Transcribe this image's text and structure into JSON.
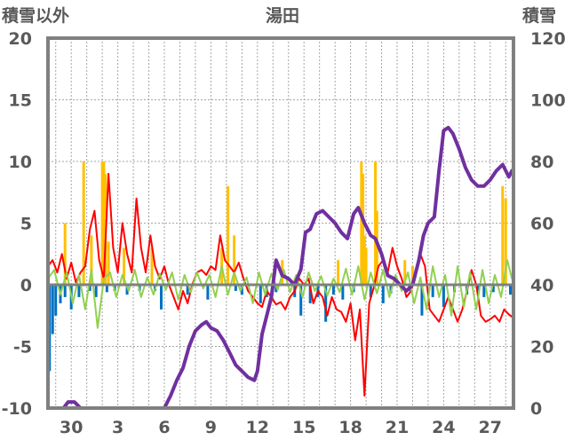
{
  "chart_data": {
    "type": "line",
    "title": "湯田",
    "ylabel_left": "積雪以外",
    "ylabel_right": "積雪",
    "ylim_left": [
      -10,
      20
    ],
    "ylim_right": [
      0,
      120
    ],
    "yticks_left": [
      20,
      15,
      10,
      5,
      0,
      -5,
      -10
    ],
    "yticks_right": [
      120,
      100,
      80,
      60,
      40,
      20,
      0
    ],
    "xlim": [
      28.5,
      58.5
    ],
    "xticks": [
      {
        "x": 30,
        "label": "30"
      },
      {
        "x": 33,
        "label": "3"
      },
      {
        "x": 36,
        "label": "6"
      },
      {
        "x": 39,
        "label": "9"
      },
      {
        "x": 42,
        "label": "12"
      },
      {
        "x": 45,
        "label": "15"
      },
      {
        "x": 48,
        "label": "18"
      },
      {
        "x": 51,
        "label": "21"
      },
      {
        "x": 54,
        "label": "24"
      },
      {
        "x": 57,
        "label": "27"
      }
    ],
    "grid": true,
    "colors": {
      "snow_depth": "#7030a0",
      "temperature": "#ff0000",
      "precipitation": "#ffc000",
      "snowfall": "#0070c0",
      "temp_change": "#92d050",
      "frame": "#808080"
    },
    "series": [
      {
        "key": "snow_depth",
        "axis": "right",
        "x": [
          28.5,
          29.5,
          29.8,
          30.2,
          30.6,
          31.5,
          33.0,
          34.5,
          36.0,
          36.4,
          36.8,
          37.2,
          37.6,
          38.0,
          38.4,
          38.7,
          39.0,
          39.4,
          39.8,
          40.2,
          40.6,
          41.0,
          41.4,
          41.8,
          42.0,
          42.3,
          42.6,
          42.9,
          43.2,
          43.6,
          44.0,
          44.4,
          44.8,
          45.1,
          45.4,
          45.8,
          46.2,
          46.6,
          47.0,
          47.4,
          47.8,
          48.2,
          48.5,
          48.9,
          49.3,
          49.6,
          50.0,
          50.4,
          50.8,
          51.2,
          51.6,
          52.0,
          52.4,
          52.7,
          53.0,
          53.4,
          53.7,
          54.0,
          54.3,
          54.6,
          55.0,
          55.4,
          55.8,
          56.2,
          56.6,
          57.0,
          57.4,
          57.8,
          58.2,
          58.4
        ],
        "values": [
          0,
          0,
          2,
          2,
          0,
          0,
          0,
          0,
          0,
          4,
          9,
          13,
          20,
          25,
          27,
          28,
          26,
          25,
          22,
          18,
          14,
          12,
          10,
          9,
          12,
          24,
          30,
          36,
          48,
          43,
          42,
          40,
          45,
          57,
          58,
          63,
          64,
          62,
          60,
          57,
          55,
          63,
          65,
          60,
          56,
          55,
          50,
          43,
          42,
          40,
          38,
          40,
          48,
          56,
          60,
          62,
          77,
          90,
          91,
          89,
          84,
          78,
          74,
          72,
          72,
          74,
          77,
          79,
          75,
          77
        ]
      },
      {
        "key": "temperature",
        "axis": "left",
        "x": [
          28.5,
          28.8,
          29.1,
          29.4,
          29.7,
          30.0,
          30.3,
          30.6,
          30.9,
          31.2,
          31.5,
          31.8,
          32.1,
          32.4,
          32.7,
          33.0,
          33.3,
          33.6,
          33.9,
          34.2,
          34.5,
          34.8,
          35.1,
          35.4,
          35.7,
          36.0,
          36.3,
          36.6,
          36.9,
          37.2,
          37.5,
          37.8,
          38.1,
          38.4,
          38.7,
          39.0,
          39.3,
          39.6,
          39.9,
          40.2,
          40.5,
          40.8,
          41.1,
          41.4,
          41.7,
          42.0,
          42.3,
          42.6,
          42.9,
          43.2,
          43.5,
          43.8,
          44.1,
          44.4,
          44.7,
          45.0,
          45.3,
          45.6,
          45.9,
          46.2,
          46.5,
          46.8,
          47.1,
          47.4,
          47.7,
          48.0,
          48.3,
          48.6,
          48.9,
          49.2,
          49.5,
          49.8,
          50.1,
          50.4,
          50.7,
          51.0,
          51.3,
          51.6,
          51.9,
          52.2,
          52.5,
          52.8,
          53.1,
          53.4,
          53.7,
          54.0,
          54.3,
          54.6,
          54.9,
          55.2,
          55.5,
          55.8,
          56.1,
          56.4,
          56.7,
          57.0,
          57.3,
          57.6,
          57.9,
          58.2,
          58.4
        ],
        "values": [
          1.5,
          2.0,
          1.0,
          2.5,
          0.5,
          1.8,
          0.2,
          1.0,
          1.5,
          4.5,
          6.0,
          2.0,
          0.5,
          9.0,
          3.0,
          1.0,
          5.0,
          2.5,
          1.0,
          7.0,
          3.0,
          1.0,
          4.0,
          1.5,
          0.5,
          1.5,
          0.0,
          -1.0,
          -2.0,
          -0.5,
          -1.5,
          0.0,
          1.0,
          1.2,
          0.8,
          1.5,
          1.2,
          4.0,
          2.0,
          1.5,
          1.0,
          1.8,
          0.5,
          -0.5,
          -1.0,
          -1.5,
          -1.8,
          -0.5,
          -1.0,
          -1.6,
          -1.4,
          -2.0,
          -1.0,
          -0.5,
          0.5,
          0.0,
          0.5,
          -1.5,
          -0.5,
          -1.0,
          -2.5,
          -1.0,
          -2.0,
          -2.2,
          -3.0,
          -1.5,
          -4.5,
          -2.0,
          -9.0,
          -1.5,
          -0.2,
          1.5,
          2.0,
          1.0,
          3.0,
          1.5,
          0.5,
          -1.0,
          -0.5,
          1.0,
          2.5,
          1.5,
          -2.0,
          -2.5,
          -3.0,
          -2.0,
          -1.0,
          -2.0,
          -3.0,
          -2.0,
          -0.5,
          1.2,
          0.0,
          -2.5,
          -3.0,
          -2.8,
          -2.5,
          -3.0,
          -2.0,
          -2.4,
          -2.6
        ]
      },
      {
        "key": "temp_change",
        "axis": "left",
        "x": [
          28.5,
          28.9,
          29.3,
          29.7,
          30.1,
          30.5,
          30.9,
          31.3,
          31.7,
          32.1,
          32.5,
          32.9,
          33.3,
          33.7,
          34.1,
          34.5,
          34.9,
          35.3,
          35.7,
          36.1,
          36.5,
          36.9,
          37.3,
          37.7,
          38.1,
          38.5,
          38.9,
          39.3,
          39.7,
          40.1,
          40.5,
          40.9,
          41.3,
          41.7,
          42.1,
          42.5,
          42.9,
          43.3,
          43.7,
          44.1,
          44.5,
          44.9,
          45.3,
          45.7,
          46.1,
          46.5,
          46.9,
          47.3,
          47.7,
          48.1,
          48.5,
          48.9,
          49.3,
          49.7,
          50.1,
          50.5,
          50.9,
          51.3,
          51.7,
          52.1,
          52.5,
          52.9,
          53.3,
          53.7,
          54.1,
          54.5,
          54.9,
          55.3,
          55.7,
          56.1,
          56.5,
          56.9,
          57.3,
          57.7,
          58.1,
          58.4
        ],
        "values": [
          0.5,
          1.2,
          -0.8,
          1.0,
          -1.5,
          0.8,
          -2.0,
          1.2,
          -3.5,
          0.5,
          1.0,
          -1.0,
          0.8,
          -0.5,
          1.2,
          -1.0,
          0.6,
          -0.8,
          0.9,
          -0.4,
          1.0,
          -1.2,
          0.8,
          -0.6,
          1.0,
          -0.3,
          0.8,
          -1.0,
          1.5,
          -0.8,
          1.0,
          -0.5,
          0.6,
          -1.5,
          1.0,
          -0.8,
          0.9,
          -0.4,
          1.2,
          -0.6,
          0.8,
          -1.0,
          1.0,
          -0.5,
          0.7,
          -0.9,
          0.5,
          -0.6,
          1.3,
          -0.8,
          1.5,
          -1.2,
          1.0,
          -0.7,
          1.2,
          -1.0,
          0.8,
          -0.5,
          1.0,
          -1.5,
          0.6,
          -2.0,
          1.5,
          -1.0,
          0.8,
          -2.5,
          1.5,
          -1.8,
          1.0,
          -2.0,
          1.2,
          -1.5,
          0.8,
          -1.0,
          2.0,
          0.5
        ]
      }
    ],
    "bars": [
      {
        "key": "precipitation",
        "axis": "left",
        "x": [
          29.6,
          30.8,
          31.3,
          32.0,
          32.1,
          32.2,
          32.4,
          33.4,
          35.2,
          39.7,
          40.1,
          40.5,
          43.6,
          47.2,
          48.7,
          48.8,
          48.9,
          49.0,
          49.6,
          49.7,
          51.5,
          52.0,
          57.8,
          58.0
        ],
        "values": [
          5.0,
          10.0,
          4.0,
          10.0,
          10.0,
          9.0,
          3.5,
          3.0,
          3.0,
          3.0,
          8.0,
          4.0,
          2.0,
          2.0,
          10.0,
          9.0,
          4.0,
          3.0,
          10.0,
          6.0,
          2.0,
          1.5,
          8.0,
          7.0
        ]
      },
      {
        "key": "snowfall",
        "axis": "left",
        "x": [
          28.6,
          28.8,
          29.0,
          29.3,
          29.6,
          30.0,
          30.5,
          31.2,
          31.6,
          32.3,
          32.8,
          33.6,
          34.4,
          35.4,
          35.8,
          37.5,
          38.8,
          40.6,
          41.0,
          42.2,
          42.6,
          43.2,
          44.4,
          44.8,
          45.4,
          45.9,
          46.4,
          46.9,
          47.5,
          48.2,
          49.3,
          50.1,
          50.6,
          51.8,
          52.6,
          53.3,
          54.0,
          54.7,
          55.5,
          56.2,
          56.6,
          57.2,
          58.3
        ],
        "values": [
          -7.0,
          -4.0,
          -2.5,
          -1.5,
          -1.0,
          -2.0,
          -1.0,
          -0.5,
          -1.0,
          -0.6,
          -0.5,
          -0.8,
          -0.5,
          -0.5,
          -2.0,
          -0.8,
          -1.2,
          -0.5,
          -0.8,
          -1.5,
          -1.0,
          -0.6,
          -1.0,
          -2.5,
          -1.5,
          -1.0,
          -3.0,
          -0.8,
          -1.2,
          -0.6,
          -1.0,
          -1.5,
          -0.7,
          -0.5,
          -2.5,
          -1.0,
          -1.8,
          -0.6,
          -0.8,
          -0.5,
          -1.0,
          -0.6,
          -0.8
        ]
      }
    ]
  }
}
